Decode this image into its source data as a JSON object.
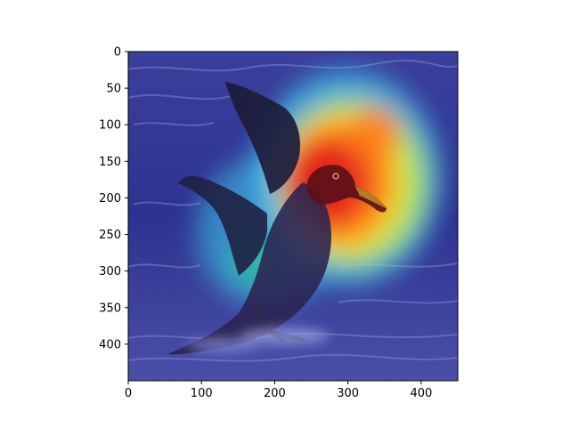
{
  "image": {
    "subject": "albatross-with-heatmap-overlay",
    "colormap": "jet",
    "overlay_background": "#1b1f8a",
    "axes": {
      "x_range": [
        0,
        450
      ],
      "y_range": [
        0,
        450
      ],
      "y_inverted": true,
      "x_ticks": [
        0,
        100,
        200,
        300,
        400
      ],
      "y_ticks": [
        0,
        50,
        100,
        150,
        200,
        250,
        300,
        350,
        400
      ],
      "x_tick_labels": [
        "0",
        "100",
        "200",
        "300",
        "400"
      ],
      "y_tick_labels": [
        "0",
        "50",
        "100",
        "150",
        "200",
        "250",
        "300",
        "350",
        "400"
      ]
    }
  }
}
